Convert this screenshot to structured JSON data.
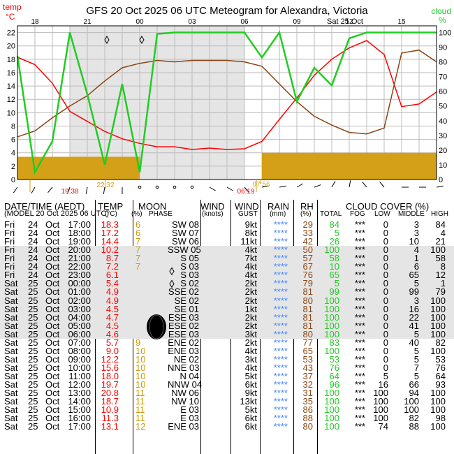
{
  "header": {
    "title": "GFS  20 Oct 2025 06 UTC  Meteogram for Alexandra, Victoria",
    "left_unit_top": "temp",
    "left_unit": "°C",
    "right_unit_top": "cloud",
    "right_unit": "%",
    "date_label": "Sat 25 Oct"
  },
  "colors": {
    "temp": "#ff0000",
    "rh": "#8b4513",
    "cloud": "#22cc22",
    "rain_bar": "#d4a017",
    "night_shade": "#e5e5e5",
    "rain_text": "#4488ff",
    "moon_text": "#cc9900"
  },
  "chart_data": {
    "type": "line",
    "x_tick_labels": [
      "18",
      "21",
      "00",
      "03",
      "06",
      "09",
      "12",
      "15"
    ],
    "left_axis": {
      "ticks": [
        "0",
        "2",
        "4",
        "6",
        "8",
        "10",
        "12",
        "14",
        "16",
        "18",
        "20",
        "22"
      ],
      "ylim": [
        0,
        23
      ]
    },
    "right_axis": {
      "ticks": [
        "0",
        "10",
        "20",
        "30",
        "40",
        "50",
        "60",
        "70",
        "80",
        "90",
        "100"
      ],
      "ylim": [
        0,
        104.5
      ]
    },
    "hours": [
      "17:00",
      "18:00",
      "19:00",
      "20:00",
      "21:00",
      "22:00",
      "23:00",
      "00:00",
      "01:00",
      "02:00",
      "03:00",
      "04:00",
      "05:00",
      "06:00",
      "07:00",
      "08:00",
      "09:00",
      "10:00",
      "11:00",
      "12:00",
      "13:00",
      "14:00",
      "15:00",
      "16:00",
      "17:00"
    ],
    "series": [
      {
        "name": "temp",
        "values": [
          18.3,
          17.2,
          14.4,
          10.2,
          8.7,
          7.2,
          6.1,
          5.4,
          4.9,
          4.9,
          4.5,
          4.7,
          4.5,
          4.6,
          5.7,
          9.0,
          12.2,
          15.6,
          18.0,
          19.7,
          20.8,
          18.7,
          10.9,
          11.3,
          13.1
        ]
      },
      {
        "name": "rh",
        "values": [
          29,
          33,
          42,
          50,
          57,
          67,
          76,
          79,
          81,
          80,
          81,
          81,
          81,
          80,
          77,
          65,
          53,
          43,
          37,
          32,
          31,
          35,
          86,
          88,
          80
        ]
      },
      {
        "name": "cloud",
        "values": [
          84,
          5,
          26,
          100,
          58,
          10,
          65,
          5,
          99,
          100,
          100,
          100,
          100,
          100,
          83,
          100,
          53,
          76,
          64,
          96,
          100,
          100,
          100,
          100,
          100
        ]
      }
    ],
    "rain_bars_deg": [
      3.4,
      3.4,
      3.4,
      3.4,
      3.4,
      3.4,
      3.4,
      0,
      0,
      0,
      0,
      0,
      0,
      0,
      4.0,
      4.0,
      4.0,
      4.0,
      4.0,
      4.0,
      4.0,
      4.0,
      4.0,
      4.0,
      4.0
    ],
    "annotations": {
      "sunset": "19:38",
      "moonset": "22:32",
      "sunrise": "06:19",
      "moonrise": "07:56"
    }
  },
  "table": {
    "headers": {
      "datetime": "DATE/TIME (AEDT)",
      "model": "(MODEL 20 Oct 2025 06 UTC)",
      "temp": "TEMP",
      "temp_unit": "(°C)",
      "moon": "MOON",
      "moon_pct": "(%)",
      "phase": "PHASE",
      "wind": "WIND",
      "wind_unit": "(knots)",
      "wind2": "WIND",
      "gust": "GUST",
      "rain": "RAIN",
      "rain_unit": "(mm)",
      "rh": "RH",
      "rh_unit": "(%)",
      "cloud": "CLOUD COVER (%)",
      "total": "TOTAL",
      "fog": "FOG",
      "low": "LOW",
      "middle": "MIDDLE",
      "high": "HIGH"
    },
    "rows": [
      {
        "d": "Fri",
        "n": "24",
        "m": "Oct",
        "t": "17:00",
        "temp": "18.3",
        "moon": "6",
        "wind": "SW 08",
        "gust": "9kt",
        "rain": "****",
        "rh": "29",
        "total": "84",
        "fog": "***",
        "low": "0",
        "mid": "3",
        "high": "84"
      },
      {
        "d": "Fri",
        "n": "24",
        "m": "Oct",
        "t": "18:00",
        "temp": "17.2",
        "moon": "6",
        "wind": "SW 07",
        "gust": "8kt",
        "rain": "****",
        "rh": "33",
        "total": "5",
        "fog": "***",
        "low": "0",
        "mid": "3",
        "high": "4"
      },
      {
        "d": "Fri",
        "n": "24",
        "m": "Oct",
        "t": "19:00",
        "temp": "14.4",
        "moon": "7",
        "wind": "SW 06",
        "gust": "11kt",
        "rain": "****",
        "rh": "42",
        "total": "26",
        "fog": "***",
        "low": "0",
        "mid": "10",
        "high": "21"
      },
      {
        "d": "Fri",
        "n": "24",
        "m": "Oct",
        "t": "20:00",
        "temp": "10.2",
        "moon": "7",
        "wind": "SSW 05",
        "gust": "4kt",
        "rain": "****",
        "rh": "50",
        "total": "100",
        "fog": "***",
        "low": "0",
        "mid": "4",
        "high": "100"
      },
      {
        "d": "Fri",
        "n": "24",
        "m": "Oct",
        "t": "21:00",
        "temp": "8.7",
        "moon": "7",
        "wind": "S 05",
        "gust": "7kt",
        "rain": "****",
        "rh": "57",
        "total": "58",
        "fog": "***",
        "low": "0",
        "mid": "1",
        "high": "58"
      },
      {
        "d": "Fri",
        "n": "24",
        "m": "Oct",
        "t": "22:00",
        "temp": "7.2",
        "moon": "7",
        "wind": "S 03",
        "gust": "4kt",
        "rain": "****",
        "rh": "67",
        "total": "10",
        "fog": "***",
        "low": "0",
        "mid": "6",
        "high": "8"
      },
      {
        "d": "Fri",
        "n": "24",
        "m": "Oct",
        "t": "23:00",
        "temp": "6.1",
        "moon": "",
        "wind": "S 03",
        "gust": "4kt",
        "rain": "****",
        "rh": "76",
        "total": "65",
        "fog": "***",
        "low": "0",
        "mid": "65",
        "high": "12"
      },
      {
        "d": "Sat",
        "n": "25",
        "m": "Oct",
        "t": "00:00",
        "temp": "5.4",
        "moon": "",
        "wind": "S 02",
        "gust": "2kt",
        "rain": "****",
        "rh": "79",
        "total": "5",
        "fog": "***",
        "low": "0",
        "mid": "5",
        "high": "1"
      },
      {
        "d": "Sat",
        "n": "25",
        "m": "Oct",
        "t": "01:00",
        "temp": "4.9",
        "moon": "",
        "wind": "SSE 02",
        "gust": "2kt",
        "rain": "****",
        "rh": "81",
        "total": "99",
        "fog": "***",
        "low": "0",
        "mid": "99",
        "high": "79"
      },
      {
        "d": "Sat",
        "n": "25",
        "m": "Oct",
        "t": "02:00",
        "temp": "4.9",
        "moon": "",
        "wind": "SE 02",
        "gust": "2kt",
        "rain": "****",
        "rh": "80",
        "total": "100",
        "fog": "***",
        "low": "0",
        "mid": "3",
        "high": "100"
      },
      {
        "d": "Sat",
        "n": "25",
        "m": "Oct",
        "t": "03:00",
        "temp": "4.5",
        "moon": "",
        "wind": "SE 01",
        "gust": "1kt",
        "rain": "****",
        "rh": "81",
        "total": "100",
        "fog": "***",
        "low": "0",
        "mid": "16",
        "high": "100"
      },
      {
        "d": "Sat",
        "n": "25",
        "m": "Oct",
        "t": "04:00",
        "temp": "4.7",
        "moon": "",
        "wind": "ESE 03",
        "gust": "2kt",
        "rain": "****",
        "rh": "81",
        "total": "100",
        "fog": "***",
        "low": "0",
        "mid": "22",
        "high": "100"
      },
      {
        "d": "Sat",
        "n": "25",
        "m": "Oct",
        "t": "05:00",
        "temp": "4.5",
        "moon": "",
        "wind": "ESE 02",
        "gust": "2kt",
        "rain": "****",
        "rh": "81",
        "total": "100",
        "fog": "***",
        "low": "0",
        "mid": "41",
        "high": "100"
      },
      {
        "d": "Sat",
        "n": "25",
        "m": "Oct",
        "t": "06:00",
        "temp": "4.6",
        "moon": "",
        "wind": "ESE 03",
        "gust": "3kt",
        "rain": "****",
        "rh": "80",
        "total": "100",
        "fog": "***",
        "low": "0",
        "mid": "5",
        "high": "100"
      },
      {
        "d": "Sat",
        "n": "25",
        "m": "Oct",
        "t": "07:00",
        "temp": "5.7",
        "moon": "9",
        "wind": "ENE 02",
        "gust": "2kt",
        "rain": "****",
        "rh": "77",
        "total": "83",
        "fog": "***",
        "low": "0",
        "mid": "40",
        "high": "82"
      },
      {
        "d": "Sat",
        "n": "25",
        "m": "Oct",
        "t": "08:00",
        "temp": "9.0",
        "moon": "10",
        "wind": "ENE 03",
        "gust": "4kt",
        "rain": "****",
        "rh": "65",
        "total": "100",
        "fog": "***",
        "low": "0",
        "mid": "5",
        "high": "100"
      },
      {
        "d": "Sat",
        "n": "25",
        "m": "Oct",
        "t": "09:00",
        "temp": "12.2",
        "moon": "10",
        "wind": "NE 02",
        "gust": "3kt",
        "rain": "****",
        "rh": "53",
        "total": "53",
        "fog": "***",
        "low": "0",
        "mid": "5",
        "high": "53"
      },
      {
        "d": "Sat",
        "n": "25",
        "m": "Oct",
        "t": "10:00",
        "temp": "15.6",
        "moon": "10",
        "wind": "NNE 03",
        "gust": "4kt",
        "rain": "****",
        "rh": "43",
        "total": "76",
        "fog": "***",
        "low": "0",
        "mid": "7",
        "high": "76"
      },
      {
        "d": "Sat",
        "n": "25",
        "m": "Oct",
        "t": "11:00",
        "temp": "18.0",
        "moon": "10",
        "wind": "N 04",
        "gust": "5kt",
        "rain": "****",
        "rh": "37",
        "total": "64",
        "fog": "***",
        "low": "5",
        "mid": "5",
        "high": "64"
      },
      {
        "d": "Sat",
        "n": "25",
        "m": "Oct",
        "t": "12:00",
        "temp": "19.7",
        "moon": "10",
        "wind": "NNW 04",
        "gust": "6kt",
        "rain": "****",
        "rh": "32",
        "total": "96",
        "fog": "***",
        "low": "16",
        "mid": "66",
        "high": "93"
      },
      {
        "d": "Sat",
        "n": "25",
        "m": "Oct",
        "t": "13:00",
        "temp": "20.8",
        "moon": "11",
        "wind": "NW 06",
        "gust": "9kt",
        "rain": "****",
        "rh": "31",
        "total": "100",
        "fog": "***",
        "low": "100",
        "mid": "94",
        "high": "100"
      },
      {
        "d": "Sat",
        "n": "25",
        "m": "Oct",
        "t": "14:00",
        "temp": "18.7",
        "moon": "11",
        "wind": "NW 10",
        "gust": "13kt",
        "rain": "****",
        "rh": "35",
        "total": "100",
        "fog": "***",
        "low": "100",
        "mid": "100",
        "high": "100"
      },
      {
        "d": "Sat",
        "n": "25",
        "m": "Oct",
        "t": "15:00",
        "temp": "10.9",
        "moon": "11",
        "wind": "E 03",
        "gust": "5kt",
        "rain": "****",
        "rh": "86",
        "total": "100",
        "fog": "***",
        "low": "100",
        "mid": "100",
        "high": "100"
      },
      {
        "d": "Sat",
        "n": "25",
        "m": "Oct",
        "t": "16:00",
        "temp": "11.3",
        "moon": "11",
        "wind": "E 03",
        "gust": "6kt",
        "rain": "****",
        "rh": "88",
        "total": "100",
        "fog": "***",
        "low": "100",
        "mid": "82",
        "high": "98"
      },
      {
        "d": "Sat",
        "n": "25",
        "m": "Oct",
        "t": "17:00",
        "temp": "13.1",
        "moon": "12",
        "wind": "ENE 03",
        "gust": "6kt",
        "rain": "****",
        "rh": "80",
        "total": "100",
        "fog": "***",
        "low": "74",
        "mid": "88",
        "high": "100"
      }
    ]
  }
}
